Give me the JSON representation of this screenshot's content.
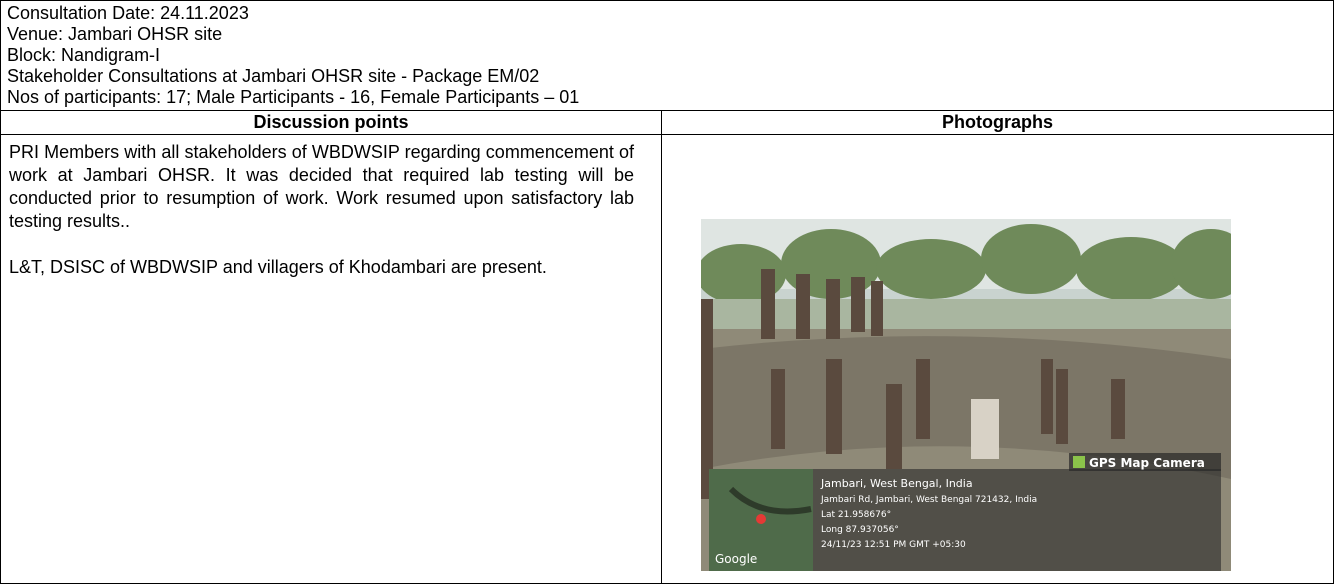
{
  "header": {
    "lines": [
      "Consultation Date: 24.11.2023",
      "Venue: Jambari OHSR site",
      "Block: Nandigram-I",
      "Stakeholder Consultations at Jambari OHSR site - Package EM/02",
      "Nos of participants: 17; Male Participants - 16, Female Participants – 01"
    ]
  },
  "table": {
    "headers": [
      "Discussion points",
      "Photographs"
    ],
    "discussion": [
      "PRI Members with all stakeholders of WBDWSIP regarding commencement of work at Jambari OHSR. It was decided that required lab testing will be conducted prior to resumption of work. Work resumed upon satisfactory lab testing results..",
      "L&T, DSISC of WBDWSIP and villagers of Khodambari are present."
    ],
    "photo": {
      "badge": "GPS Map Camera",
      "place": "Jambari, West Bengal, India",
      "address": "Jambari Rd, Jambari, West Bengal 721432, India",
      "lat": "Lat 21.958676°",
      "long": "Long 87.937056°",
      "datetime": "24/11/23 12:51 PM GMT +05:30",
      "map_label": "Google"
    }
  }
}
